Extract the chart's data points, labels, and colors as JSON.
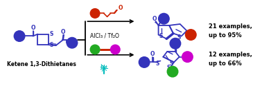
{
  "bg_color": "#ffffff",
  "text_examples1": "21 examples,\nup to 95%",
  "text_examples2": "12 examples,\nup to 66%",
  "text_ketene": "Ketene 1,3-Dithietanes",
  "text_reagent1": "AlCl₃ / Tf₂O",
  "colors": {
    "blue": "#3333bb",
    "red": "#cc2200",
    "green": "#22aa22",
    "magenta": "#cc00cc",
    "black": "#000000",
    "teal": "#00bbbb"
  },
  "figsize": [
    3.78,
    1.41
  ],
  "dpi": 100
}
